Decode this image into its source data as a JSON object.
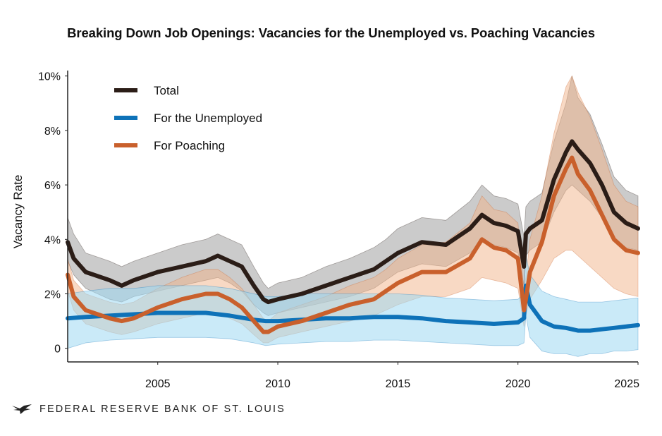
{
  "chart_data": {
    "type": "line",
    "title": "Breaking Down Job Openings: Vacancies for the Unemployed vs. Poaching Vacancies",
    "xlabel": "",
    "ylabel": "Vacancy Rate",
    "xlim": [
      2001.25,
      2025
    ],
    "ylim": [
      -0.5,
      10.2
    ],
    "x_ticks": [
      2005,
      2010,
      2015,
      2020,
      2025
    ],
    "x_tick_labels": [
      "2005",
      "2010",
      "2015",
      "2020",
      "2025"
    ],
    "y_ticks": [
      0,
      2,
      4,
      6,
      8,
      10
    ],
    "y_tick_labels": [
      "0",
      "2%",
      "4%",
      "6%",
      "8%",
      "10%"
    ],
    "legend_position": "top-left",
    "series": [
      {
        "name": "Total",
        "color": "#2b1d17",
        "band_color": "#8c8c8c",
        "x": [
          2001.25,
          2001.5,
          2002,
          2003,
          2003.5,
          2004,
          2005,
          2006,
          2007,
          2007.5,
          2008,
          2008.5,
          2009,
          2009.4,
          2009.6,
          2010,
          2011,
          2012,
          2013,
          2014,
          2014.5,
          2015,
          2016,
          2017,
          2018,
          2018.5,
          2019,
          2019.5,
          2020,
          2020.25,
          2020.33,
          2020.5,
          2021,
          2021.5,
          2022,
          2022.25,
          2022.5,
          2023,
          2023.5,
          2024,
          2024.5,
          2025
        ],
        "values": [
          3.9,
          3.3,
          2.8,
          2.5,
          2.3,
          2.5,
          2.8,
          3.0,
          3.2,
          3.4,
          3.2,
          3.0,
          2.3,
          1.8,
          1.7,
          1.8,
          2.0,
          2.3,
          2.6,
          2.9,
          3.2,
          3.5,
          3.9,
          3.8,
          4.4,
          4.9,
          4.6,
          4.5,
          4.3,
          3.0,
          4.2,
          4.4,
          4.7,
          6.2,
          7.2,
          7.6,
          7.3,
          6.8,
          6.0,
          5.0,
          4.6,
          4.4
        ],
        "lower": [
          3.2,
          2.7,
          2.2,
          1.8,
          1.7,
          1.9,
          2.1,
          2.3,
          2.5,
          2.6,
          2.4,
          2.1,
          1.6,
          1.3,
          1.2,
          1.3,
          1.5,
          1.7,
          1.9,
          2.2,
          2.5,
          2.8,
          3.1,
          3.0,
          3.5,
          3.9,
          3.8,
          3.7,
          3.5,
          2.3,
          3.4,
          3.6,
          3.9,
          5.0,
          5.8,
          6.0,
          5.8,
          5.4,
          4.8,
          4.0,
          3.7,
          3.6
        ],
        "upper": [
          4.8,
          4.2,
          3.5,
          3.2,
          3.0,
          3.2,
          3.5,
          3.8,
          4.0,
          4.2,
          4.0,
          3.8,
          3.0,
          2.4,
          2.2,
          2.4,
          2.6,
          3.0,
          3.3,
          3.7,
          4.0,
          4.4,
          4.8,
          4.7,
          5.4,
          6.0,
          5.6,
          5.5,
          5.3,
          4.1,
          5.2,
          5.4,
          5.7,
          7.6,
          9.0,
          10.0,
          9.2,
          8.6,
          7.5,
          6.3,
          5.8,
          5.6
        ]
      },
      {
        "name": "For the Unemployed",
        "color": "#0e72b8",
        "band_color": "#9fd8f3",
        "x": [
          2001.25,
          2002,
          2003,
          2004,
          2005,
          2006,
          2007,
          2008,
          2009,
          2009.5,
          2010,
          2011,
          2012,
          2013,
          2014,
          2015,
          2016,
          2017,
          2018,
          2019,
          2020,
          2020.25,
          2020.33,
          2020.5,
          2021,
          2021.5,
          2022,
          2022.5,
          2023,
          2023.5,
          2024,
          2024.5,
          2025
        ],
        "values": [
          1.1,
          1.15,
          1.2,
          1.25,
          1.3,
          1.3,
          1.3,
          1.2,
          1.05,
          1.0,
          1.0,
          1.05,
          1.1,
          1.1,
          1.15,
          1.15,
          1.1,
          1.0,
          0.95,
          0.9,
          0.95,
          1.1,
          2.3,
          1.6,
          1.0,
          0.8,
          0.75,
          0.65,
          0.65,
          0.7,
          0.75,
          0.8,
          0.85
        ],
        "lower": [
          0.0,
          0.2,
          0.3,
          0.35,
          0.4,
          0.4,
          0.4,
          0.35,
          0.2,
          0.1,
          0.15,
          0.2,
          0.25,
          0.25,
          0.3,
          0.3,
          0.25,
          0.2,
          0.15,
          0.1,
          0.1,
          0.2,
          1.2,
          0.4,
          -0.1,
          -0.2,
          -0.2,
          -0.3,
          -0.2,
          -0.2,
          -0.1,
          -0.1,
          -0.05
        ],
        "upper": [
          2.0,
          2.1,
          2.2,
          2.2,
          2.3,
          2.3,
          2.3,
          2.2,
          2.0,
          1.9,
          1.9,
          2.0,
          2.0,
          2.0,
          2.0,
          2.0,
          1.95,
          1.85,
          1.8,
          1.75,
          1.8,
          2.0,
          3.4,
          2.7,
          2.1,
          1.9,
          1.8,
          1.7,
          1.7,
          1.7,
          1.75,
          1.8,
          1.85
        ]
      },
      {
        "name": "For Poaching",
        "color": "#c9602c",
        "band_color": "#f2b48a",
        "x": [
          2001.25,
          2001.5,
          2002,
          2003,
          2003.5,
          2004,
          2005,
          2006,
          2007,
          2007.5,
          2008,
          2008.5,
          2009,
          2009.4,
          2009.6,
          2010,
          2011,
          2012,
          2013,
          2014,
          2014.5,
          2015,
          2016,
          2017,
          2018,
          2018.5,
          2019,
          2019.5,
          2020,
          2020.25,
          2020.33,
          2020.5,
          2021,
          2021.5,
          2022,
          2022.25,
          2022.5,
          2023,
          2023.5,
          2024,
          2024.5,
          2025
        ],
        "values": [
          2.7,
          1.9,
          1.4,
          1.1,
          1.0,
          1.1,
          1.5,
          1.8,
          2.0,
          2.0,
          1.8,
          1.5,
          1.0,
          0.6,
          0.6,
          0.8,
          1.0,
          1.3,
          1.6,
          1.8,
          2.1,
          2.4,
          2.8,
          2.8,
          3.3,
          4.0,
          3.7,
          3.6,
          3.3,
          1.4,
          1.8,
          2.8,
          3.9,
          5.6,
          6.6,
          7.0,
          6.4,
          5.8,
          4.9,
          4.0,
          3.6,
          3.5
        ],
        "lower": [
          2.1,
          1.4,
          0.9,
          0.6,
          0.5,
          0.6,
          0.9,
          1.1,
          1.3,
          1.3,
          1.1,
          0.9,
          0.5,
          0.2,
          0.2,
          0.4,
          0.6,
          0.8,
          1.0,
          1.2,
          1.4,
          1.6,
          1.9,
          1.9,
          2.2,
          2.6,
          2.5,
          2.4,
          2.2,
          0.8,
          1.2,
          1.8,
          2.5,
          3.3,
          3.6,
          3.6,
          3.4,
          3.0,
          2.6,
          2.2,
          2.0,
          1.9
        ],
        "upper": [
          3.3,
          2.5,
          2.0,
          1.7,
          1.6,
          1.7,
          2.2,
          2.6,
          2.9,
          2.9,
          2.6,
          2.2,
          1.6,
          1.1,
          1.0,
          1.3,
          1.6,
          1.9,
          2.3,
          2.6,
          2.9,
          3.3,
          3.8,
          3.9,
          4.6,
          5.6,
          5.1,
          5.0,
          4.6,
          2.1,
          2.6,
          4.0,
          5.6,
          7.9,
          9.6,
          10.0,
          9.4,
          8.5,
          7.3,
          6.0,
          5.4,
          5.2
        ]
      }
    ]
  },
  "footer": {
    "organization": "FEDERAL RESERVE BANK OF ST. LOUIS"
  }
}
